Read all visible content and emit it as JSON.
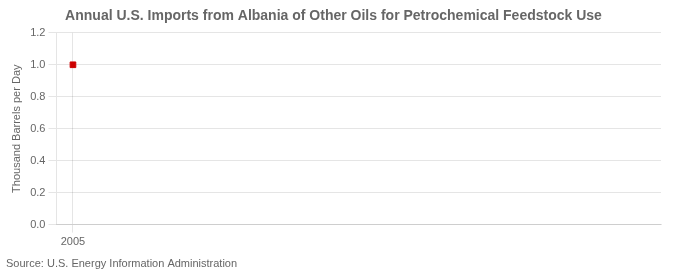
{
  "chart_data": {
    "type": "scatter",
    "title": "Annual U.S. Imports from Albania of Other Oils for Petrochemical Feedstock Use",
    "ylabel": "Thousand Barrels per Day",
    "annotation": "Source: U.S. Energy Information Administration",
    "x": [
      2005
    ],
    "values": [
      1.0
    ],
    "color": "#cc0000",
    "marker": "square",
    "xlim": [
      2004.3,
      2030
    ],
    "xticks": [
      2005
    ],
    "ylim": [
      0.0,
      1.2
    ],
    "yticks": [
      {
        "value": 0,
        "label": "0.0"
      },
      0.2,
      0.4,
      0.6,
      0.8,
      {
        "value": 1,
        "label": "1.0"
      },
      1.2
    ],
    "grid": true
  }
}
